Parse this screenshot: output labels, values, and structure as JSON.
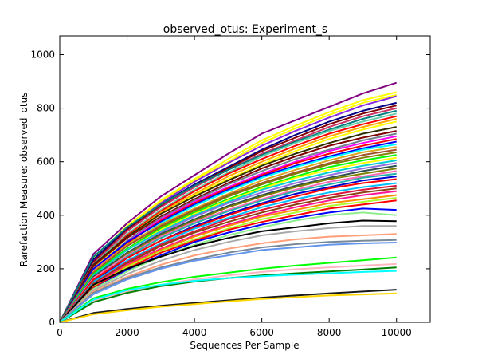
{
  "chart_data": {
    "type": "line",
    "title": "observed_otus: Experiment_s",
    "xlabel": "Sequences Per Sample",
    "ylabel": "Rarefaction Measure: observed_otus",
    "xlim": [
      0,
      11000
    ],
    "ylim": [
      0,
      1070
    ],
    "x_ticks": [
      0,
      2000,
      4000,
      6000,
      8000,
      10000
    ],
    "y_ticks": [
      0,
      200,
      400,
      600,
      800,
      1000
    ],
    "grid": false,
    "legend": "none",
    "x": [
      0,
      1000,
      2000,
      3000,
      4000,
      5000,
      6000,
      7000,
      8000,
      9000,
      10000
    ],
    "series": [
      {
        "color": "#800080",
        "values": [
          0,
          255,
          370,
          470,
          550,
          630,
          705,
          755,
          805,
          855,
          895
        ]
      },
      {
        "color": "#ffff00",
        "values": [
          0,
          240,
          360,
          455,
          535,
          610,
          680,
          735,
          785,
          830,
          860
        ]
      },
      {
        "color": "#ffff00",
        "values": [
          0,
          235,
          355,
          450,
          530,
          600,
          670,
          725,
          775,
          820,
          850
        ]
      },
      {
        "color": "#8a2be2",
        "values": [
          0,
          230,
          350,
          445,
          525,
          595,
          660,
          715,
          765,
          810,
          845
        ]
      },
      {
        "color": "#000080",
        "values": [
          0,
          235,
          350,
          440,
          515,
          580,
          645,
          700,
          750,
          790,
          820
        ]
      },
      {
        "color": "#800000",
        "values": [
          0,
          225,
          345,
          435,
          510,
          575,
          640,
          690,
          740,
          780,
          810
        ]
      },
      {
        "color": "#cc3366",
        "values": [
          0,
          220,
          340,
          430,
          505,
          570,
          630,
          680,
          730,
          770,
          800
        ]
      },
      {
        "color": "#008080",
        "values": [
          0,
          245,
          355,
          440,
          510,
          570,
          625,
          675,
          720,
          760,
          790
        ]
      },
      {
        "color": "#66cdaa",
        "values": [
          0,
          215,
          330,
          420,
          495,
          560,
          620,
          670,
          715,
          750,
          780
        ]
      },
      {
        "color": "#ff0000",
        "values": [
          0,
          210,
          325,
          415,
          490,
          555,
          610,
          660,
          705,
          740,
          770
        ]
      },
      {
        "color": "#ffa500",
        "values": [
          0,
          205,
          320,
          410,
          480,
          545,
          600,
          650,
          695,
          730,
          760
        ]
      },
      {
        "color": "#ffff00",
        "values": [
          0,
          200,
          315,
          405,
          475,
          535,
          590,
          640,
          685,
          720,
          750
        ]
      },
      {
        "color": "#2f2f00",
        "values": [
          0,
          215,
          320,
          405,
          470,
          530,
          585,
          630,
          670,
          705,
          730
        ]
      },
      {
        "color": "#800000",
        "values": [
          0,
          210,
          315,
          395,
          460,
          520,
          575,
          620,
          660,
          690,
          715
        ]
      },
      {
        "color": "#708090",
        "values": [
          0,
          195,
          305,
          390,
          455,
          515,
          565,
          610,
          645,
          680,
          705
        ]
      },
      {
        "color": "#ff00ff",
        "values": [
          0,
          190,
          300,
          385,
          450,
          505,
          555,
          600,
          640,
          670,
          695
        ]
      },
      {
        "color": "#ff0000",
        "values": [
          0,
          185,
          295,
          380,
          445,
          500,
          550,
          595,
          630,
          660,
          685
        ]
      },
      {
        "color": "#0000ff",
        "values": [
          0,
          200,
          300,
          375,
          440,
          495,
          545,
          585,
          620,
          650,
          675
        ]
      },
      {
        "color": "#00ffff",
        "values": [
          0,
          180,
          285,
          370,
          435,
          490,
          540,
          580,
          615,
          645,
          665
        ]
      },
      {
        "color": "#daa520",
        "values": [
          0,
          190,
          290,
          365,
          425,
          480,
          530,
          570,
          605,
          635,
          655
        ]
      },
      {
        "color": "#a0522d",
        "values": [
          0,
          185,
          285,
          360,
          420,
          475,
          520,
          560,
          595,
          625,
          645
        ]
      },
      {
        "color": "#808000",
        "values": [
          0,
          175,
          275,
          355,
          415,
          470,
          515,
          555,
          590,
          615,
          635
        ]
      },
      {
        "color": "#00ff00",
        "values": [
          0,
          180,
          275,
          350,
          410,
          460,
          505,
          545,
          580,
          605,
          625
        ]
      },
      {
        "color": "#ffff00",
        "values": [
          0,
          170,
          270,
          345,
          405,
          455,
          500,
          540,
          570,
          595,
          615
        ]
      },
      {
        "color": "#00ced1",
        "values": [
          0,
          175,
          270,
          340,
          400,
          450,
          495,
          530,
          560,
          585,
          605
        ]
      },
      {
        "color": "#9370db",
        "values": [
          0,
          165,
          260,
          335,
          395,
          445,
          485,
          520,
          550,
          575,
          595
        ]
      },
      {
        "color": "#2f4f4f",
        "values": [
          0,
          170,
          260,
          330,
          385,
          435,
          475,
          510,
          540,
          565,
          585
        ]
      },
      {
        "color": "#808000",
        "values": [
          0,
          160,
          255,
          325,
          380,
          430,
          470,
          505,
          535,
          555,
          575
        ]
      },
      {
        "color": "#ff69b4",
        "values": [
          0,
          165,
          250,
          320,
          375,
          420,
          460,
          495,
          525,
          545,
          565
        ]
      },
      {
        "color": "#20b2aa",
        "values": [
          0,
          155,
          245,
          315,
          370,
          415,
          455,
          490,
          515,
          540,
          555
        ]
      },
      {
        "color": "#0000cd",
        "values": [
          0,
          150,
          240,
          305,
          360,
          405,
          445,
          480,
          505,
          530,
          545
        ]
      },
      {
        "color": "#ff0000",
        "values": [
          0,
          160,
          240,
          305,
          355,
          400,
          440,
          470,
          500,
          520,
          535
        ]
      },
      {
        "color": "#00bfff",
        "values": [
          0,
          150,
          230,
          295,
          350,
          390,
          430,
          460,
          485,
          505,
          520
        ]
      },
      {
        "color": "#dc143c",
        "values": [
          0,
          145,
          225,
          290,
          340,
          385,
          420,
          450,
          475,
          495,
          510
        ]
      },
      {
        "color": "#8b4513",
        "values": [
          0,
          145,
          220,
          285,
          335,
          375,
          410,
          440,
          465,
          485,
          500
        ]
      },
      {
        "color": "#ff1493",
        "values": [
          0,
          140,
          215,
          275,
          325,
          365,
          400,
          430,
          455,
          475,
          490
        ]
      },
      {
        "color": "#ff8c00",
        "values": [
          0,
          135,
          210,
          270,
          320,
          360,
          395,
          420,
          445,
          460,
          475
        ]
      },
      {
        "color": "#adff2f",
        "values": [
          0,
          135,
          205,
          265,
          310,
          350,
          385,
          410,
          435,
          450,
          465
        ]
      },
      {
        "color": "#ff0000",
        "values": [
          0,
          130,
          200,
          260,
          305,
          345,
          375,
          400,
          425,
          440,
          455
        ]
      },
      {
        "color": "#0000ff",
        "values": [
          0,
          125,
          195,
          250,
          300,
          335,
          365,
          390,
          410,
          425,
          420
        ]
      },
      {
        "color": "#90ee90",
        "values": [
          0,
          125,
          190,
          245,
          290,
          325,
          355,
          380,
          400,
          410,
          400
        ]
      },
      {
        "color": "#000000",
        "values": [
          0,
          140,
          200,
          245,
          285,
          315,
          340,
          355,
          370,
          380,
          378
        ]
      },
      {
        "color": "#a9a9a9",
        "values": [
          0,
          120,
          180,
          230,
          270,
          300,
          325,
          340,
          352,
          360,
          360
        ]
      },
      {
        "color": "#ffa07a",
        "values": [
          0,
          115,
          170,
          215,
          250,
          275,
          295,
          310,
          320,
          325,
          330
        ]
      },
      {
        "color": "#778899",
        "values": [
          0,
          110,
          165,
          205,
          235,
          260,
          280,
          292,
          300,
          305,
          308
        ]
      },
      {
        "color": "#6495ed",
        "values": [
          0,
          105,
          160,
          200,
          230,
          250,
          270,
          280,
          290,
          295,
          298
        ]
      },
      {
        "color": "#00ff00",
        "values": [
          0,
          90,
          125,
          150,
          170,
          185,
          200,
          212,
          222,
          232,
          242
        ]
      },
      {
        "color": "#ffb6c1",
        "values": [
          0,
          80,
          115,
          140,
          160,
          175,
          188,
          198,
          205,
          212,
          218
        ]
      },
      {
        "color": "#008000",
        "values": [
          0,
          75,
          110,
          135,
          152,
          165,
          175,
          183,
          190,
          197,
          205
        ]
      },
      {
        "color": "#00ffff",
        "values": [
          0,
          85,
          120,
          140,
          155,
          165,
          172,
          178,
          183,
          188,
          192
        ]
      },
      {
        "color": "#1a1a1a",
        "values": [
          0,
          35,
          50,
          62,
          72,
          82,
          92,
          100,
          108,
          115,
          122
        ]
      },
      {
        "color": "#ffd700",
        "values": [
          0,
          30,
          45,
          58,
          68,
          78,
          87,
          94,
          100,
          104,
          108
        ]
      }
    ]
  }
}
